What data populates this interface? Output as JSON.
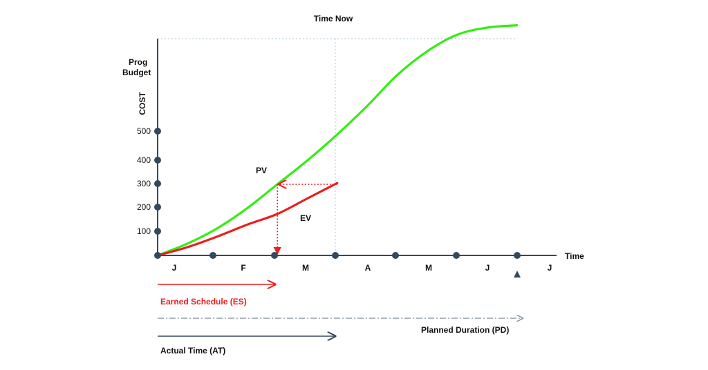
{
  "colors": {
    "axis": "#34495e",
    "pv": "#33ee11",
    "ev": "#ee1c1c",
    "guide": "#a8c4d8",
    "es_arrow": "#ee1c1c",
    "at_arrow": "#34495e",
    "pd_arrow": "#7a8a99"
  },
  "labels": {
    "time_now": "Time Now",
    "prog_budget_line1": "Prog",
    "prog_budget_line2": "Budget",
    "y_axis": "COST",
    "x_axis": "Time",
    "pv": "PV",
    "ev": "EV",
    "earned_schedule": "Earned Schedule (ES)",
    "planned_duration": "Planned Duration (PD)",
    "actual_time": "Actual Time (AT)"
  },
  "chart_data": {
    "type": "line",
    "y_ticks": [
      100,
      200,
      300,
      400,
      500
    ],
    "x_months": [
      "J",
      "F",
      "M",
      "A",
      "M",
      "J",
      "J"
    ],
    "series": [
      {
        "name": "PV",
        "points": [
          [
            0,
            0
          ],
          [
            0.5,
            50
          ],
          [
            1,
            115
          ],
          [
            1.5,
            200
          ],
          [
            2,
            300
          ],
          [
            2.5,
            400
          ],
          [
            3,
            510
          ],
          [
            3.5,
            630
          ],
          [
            4,
            760
          ],
          [
            4.5,
            860
          ],
          [
            5,
            930
          ],
          [
            5.5,
            960
          ],
          [
            6,
            970
          ]
        ]
      },
      {
        "name": "EV",
        "points": [
          [
            0,
            0
          ],
          [
            0.5,
            35
          ],
          [
            1,
            80
          ],
          [
            1.5,
            130
          ],
          [
            2,
            175
          ],
          [
            2.5,
            240
          ],
          [
            3,
            305
          ]
        ]
      }
    ],
    "time_now_x": 3,
    "planned_end_x": 6,
    "es_x": 2,
    "ev_current": 300
  }
}
